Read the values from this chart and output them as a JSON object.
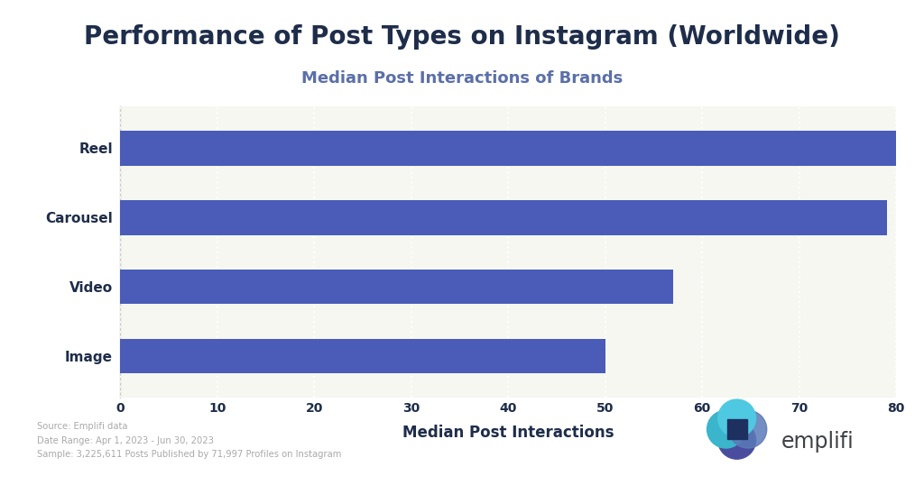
{
  "title": "Performance of Post Types on Instagram (Worldwide)",
  "subtitle": "Median Post Interactions of Brands",
  "categories": [
    "Image",
    "Video",
    "Carousel",
    "Reel"
  ],
  "values": [
    50,
    57,
    79,
    80
  ],
  "bar_color": "#4a5cb8",
  "background_color": "#ffffff",
  "plot_bg_color": "#f5f7f0",
  "xlabel": "Median Post Interactions",
  "xlim": [
    0,
    80
  ],
  "xticks": [
    0,
    10,
    20,
    30,
    40,
    50,
    60,
    70,
    80
  ],
  "title_color": "#1e2d4a",
  "subtitle_color": "#5b6fa8",
  "ylabel_color": "#1e2d4a",
  "xlabel_color": "#1e2d4a",
  "tick_color": "#1e2d4a",
  "grid_color": "#ffffff",
  "source_text": "Source: Emplifi data\nDate Range: Apr 1, 2023 - Jun 30, 2023\nSample: 3,225,611 Posts Published by 71,997 Profiles on Instagram",
  "source_color": "#aaaaaa",
  "emplifi_text_color": "#3d4045",
  "title_fontsize": 20,
  "subtitle_fontsize": 13,
  "xlabel_fontsize": 12,
  "ylabel_fontsize": 11,
  "tick_fontsize": 10,
  "bar_height": 0.5
}
